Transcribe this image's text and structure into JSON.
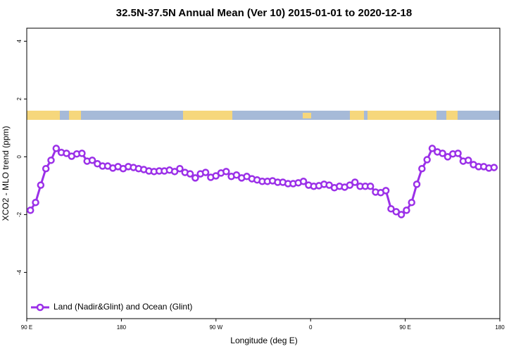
{
  "chart_data": {
    "type": "line",
    "title": "32.5N-37.5N Annual Mean (Ver 10)   2015-01-01 to 2020-12-18",
    "x_label": "Longitude (deg E)",
    "y_label": "XCO2 - MLO trend (ppm)",
    "xlim": [
      90,
      540
    ],
    "ylim": [
      -5.6,
      4.45
    ],
    "xticks": [
      {
        "value": 90,
        "label": "90 E"
      },
      180,
      {
        "value": 270,
        "label": "90 W"
      },
      {
        "value": 360,
        "label": "0"
      },
      {
        "value": 450,
        "label": "90 E"
      },
      {
        "value": 540,
        "label": "180"
      }
    ],
    "yticks": [
      -4,
      -2,
      0,
      2,
      4
    ],
    "legend": "bottom-left",
    "x": [
      93.5,
      98.4,
      103.3,
      108.2,
      113.1,
      118,
      122.9,
      127.8,
      132.7,
      137.6,
      142.5,
      147.4,
      152.3,
      157.2,
      162.1,
      167,
      171.9,
      176.8,
      181.7,
      186.6,
      191.5,
      196.4,
      201.3,
      206.2,
      211.1,
      216,
      220.9,
      225.8,
      230.7,
      235.6,
      240.5,
      245.4,
      250.3,
      255.2,
      260.1,
      265,
      269.9,
      274.8,
      279.7,
      284.6,
      289.5,
      294.4,
      299.3,
      304.2,
      309.1,
      314,
      318.9,
      323.8,
      328.7,
      333.6,
      338.5,
      343.4,
      348.3,
      353.2,
      358.1,
      363,
      367.9,
      372.8,
      377.7,
      382.6,
      387.5,
      392.4,
      397.3,
      402.2,
      407.1,
      412,
      416.9,
      421.8,
      426.7,
      431.6,
      436.5,
      441.4,
      446.3,
      451.2,
      456.1,
      461,
      465.9,
      470.8,
      475.7,
      480.6,
      485.5,
      490.4,
      495.3,
      500.2,
      505.1,
      510,
      514.9,
      519.8,
      524.7,
      529.6,
      534.5
    ],
    "series": [
      {
        "name": "Land (Nadir&Glint) and Ocean (Glint)",
        "color": "#9b30e8",
        "values": [
          -1.85,
          -1.58,
          -0.98,
          -0.41,
          -0.12,
          0.29,
          0.15,
          0.12,
          0.02,
          0.1,
          0.12,
          -0.15,
          -0.12,
          -0.24,
          -0.32,
          -0.32,
          -0.39,
          -0.34,
          -0.41,
          -0.34,
          -0.37,
          -0.41,
          -0.44,
          -0.49,
          -0.51,
          -0.49,
          -0.49,
          -0.46,
          -0.51,
          -0.41,
          -0.54,
          -0.59,
          -0.73,
          -0.59,
          -0.54,
          -0.71,
          -0.66,
          -0.56,
          -0.51,
          -0.68,
          -0.63,
          -0.73,
          -0.68,
          -0.76,
          -0.8,
          -0.85,
          -0.85,
          -0.83,
          -0.88,
          -0.88,
          -0.93,
          -0.93,
          -0.9,
          -0.85,
          -0.98,
          -1.02,
          -1,
          -0.95,
          -0.98,
          -1.07,
          -1.02,
          -1.05,
          -0.98,
          -0.88,
          -1.02,
          -1.02,
          -1.02,
          -1.22,
          -1.24,
          -1.17,
          -1.8,
          -1.9,
          -2,
          -1.85,
          -1.58,
          -0.95,
          -0.41,
          -0.1,
          0.29,
          0.17,
          0.12,
          0,
          0.1,
          0.12,
          -0.15,
          -0.12,
          -0.27,
          -0.34,
          -0.34,
          -0.39,
          -0.37
        ]
      }
    ]
  }
}
